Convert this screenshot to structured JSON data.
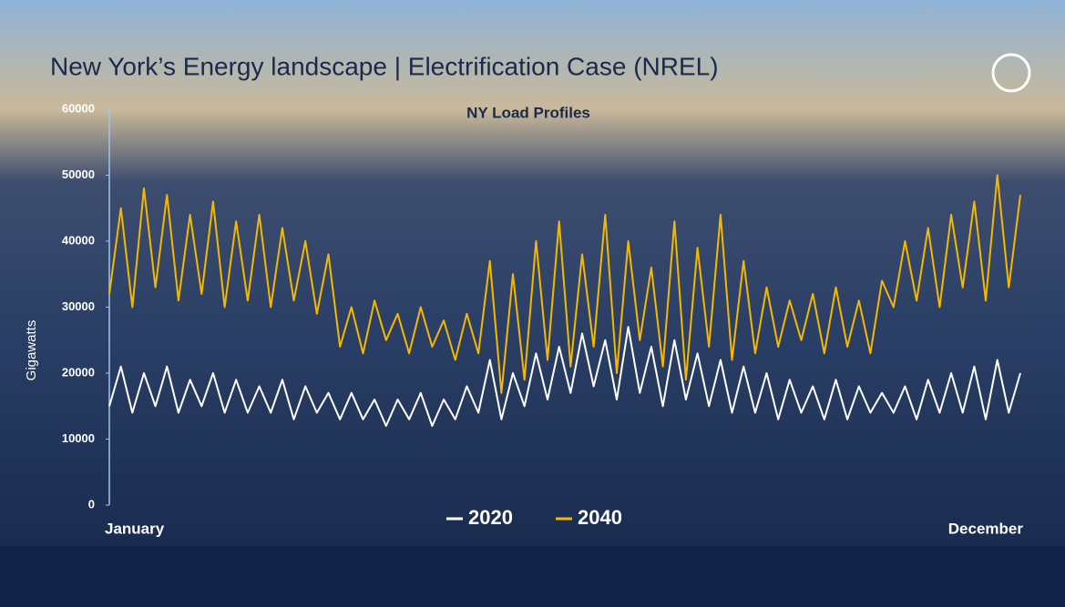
{
  "chart_data": {
    "type": "line",
    "title": "New York’s Energy landscape | Electrification Case (NREL)",
    "subtitle": "NY Load Profiles",
    "y_label": "Gigawatts",
    "categories": [
      "January",
      null,
      null,
      null,
      null,
      null,
      null,
      null,
      null,
      null,
      null,
      null,
      null,
      null,
      null,
      null,
      null,
      null,
      null,
      null,
      null,
      null,
      null,
      null,
      null,
      null,
      null,
      null,
      null,
      null,
      null,
      null,
      null,
      null,
      null,
      null,
      null,
      null,
      null,
      null,
      null,
      null,
      null,
      null,
      null,
      null,
      null,
      null,
      null,
      null,
      null,
      null,
      null,
      null,
      null,
      null,
      null,
      null,
      null,
      null,
      null,
      null,
      null,
      null,
      null,
      null,
      null,
      null,
      null,
      null,
      null,
      null,
      null,
      null,
      null,
      null,
      null,
      null,
      null,
      "December"
    ],
    "series": [
      {
        "name": "2020",
        "color": "#ffffff",
        "values": [
          15000,
          21000,
          14000,
          20000,
          15000,
          21000,
          14000,
          19000,
          15000,
          20000,
          14000,
          19000,
          14000,
          18000,
          14000,
          19000,
          13000,
          18000,
          14000,
          17000,
          13000,
          17000,
          13000,
          16000,
          12000,
          16000,
          13000,
          17000,
          12000,
          16000,
          13000,
          18000,
          14000,
          22000,
          13000,
          20000,
          15000,
          23000,
          16000,
          24000,
          17000,
          26000,
          18000,
          25000,
          16000,
          27000,
          17000,
          24000,
          15000,
          25000,
          16000,
          23000,
          15000,
          22000,
          14000,
          21000,
          14000,
          20000,
          13000,
          19000,
          14000,
          18000,
          13000,
          19000,
          13000,
          18000,
          14000,
          17000,
          14000,
          18000,
          13000,
          19000,
          14000,
          20000,
          14000,
          21000,
          13000,
          22000,
          14000,
          20000
        ]
      },
      {
        "name": "2040",
        "color": "#f5b800",
        "values": [
          32000,
          45000,
          30000,
          48000,
          33000,
          47000,
          31000,
          44000,
          32000,
          46000,
          30000,
          43000,
          31000,
          44000,
          30000,
          42000,
          31000,
          40000,
          29000,
          38000,
          24000,
          30000,
          23000,
          31000,
          25000,
          29000,
          23000,
          30000,
          24000,
          28000,
          22000,
          29000,
          23000,
          37000,
          17000,
          35000,
          19000,
          40000,
          22000,
          43000,
          21000,
          38000,
          24000,
          44000,
          20000,
          40000,
          25000,
          36000,
          21000,
          43000,
          19000,
          39000,
          24000,
          44000,
          22000,
          37000,
          23000,
          33000,
          24000,
          31000,
          25000,
          32000,
          23000,
          33000,
          24000,
          31000,
          23000,
          34000,
          30000,
          40000,
          31000,
          42000,
          30000,
          44000,
          33000,
          46000,
          31000,
          50000,
          33000,
          47000
        ]
      }
    ],
    "ylim": [
      0,
      60000
    ],
    "yticks": [
      0,
      10000,
      20000,
      30000,
      40000,
      50000,
      60000
    ]
  }
}
